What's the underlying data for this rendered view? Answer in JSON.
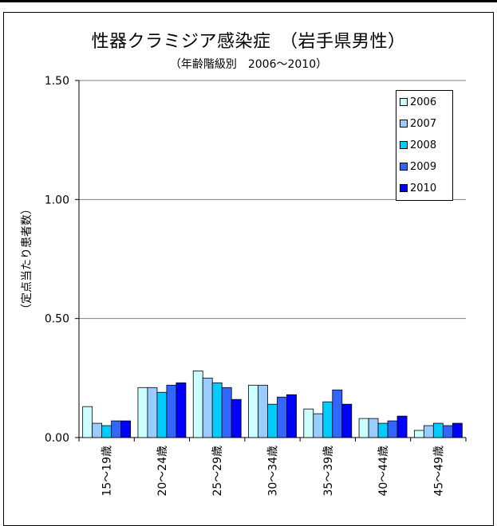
{
  "title": "性器クラミジア感染症　（岩手県男性）",
  "subtitle": "（年齢階級別　2006～2010）",
  "colors": {
    "2006": "#ccffff",
    "2007": "#99ccff",
    "2008": "#00ccff",
    "2009": "#3366ff",
    "2010": "#0000ff"
  },
  "chart_data": {
    "type": "bar",
    "title": "性器クラミジア感染症　（岩手県男性）",
    "subtitle": "（年齢階級別　2006～2010）",
    "xlabel": "",
    "ylabel": "（定点当たり患者数）",
    "ylim": [
      0,
      1.5
    ],
    "yticks": [
      "0.00",
      "0.50",
      "1.00",
      "1.50"
    ],
    "grid": true,
    "legend_position": "top-right",
    "categories": [
      "15～19歳",
      "20～24歳",
      "25～29歳",
      "30～34歳",
      "35～39歳",
      "40～44歳",
      "45～49歳"
    ],
    "series": [
      {
        "name": "2006",
        "values": [
          0.13,
          0.21,
          0.28,
          0.22,
          0.12,
          0.08,
          0.03
        ]
      },
      {
        "name": "2007",
        "values": [
          0.06,
          0.21,
          0.25,
          0.22,
          0.1,
          0.08,
          0.05
        ]
      },
      {
        "name": "2008",
        "values": [
          0.05,
          0.19,
          0.23,
          0.14,
          0.15,
          0.06,
          0.06
        ]
      },
      {
        "name": "2009",
        "values": [
          0.07,
          0.22,
          0.21,
          0.17,
          0.2,
          0.07,
          0.05
        ]
      },
      {
        "name": "2010",
        "values": [
          0.07,
          0.23,
          0.16,
          0.18,
          0.14,
          0.09,
          0.06
        ]
      }
    ]
  }
}
